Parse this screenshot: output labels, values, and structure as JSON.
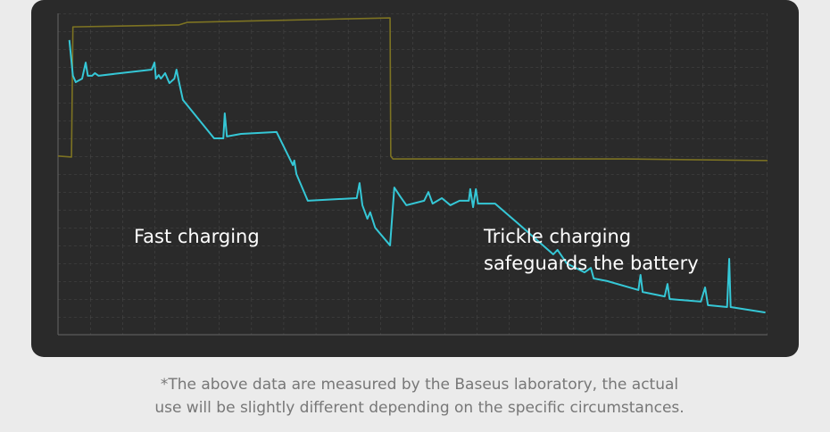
{
  "chart_data": {
    "type": "line",
    "xlim": [
      0,
      100
    ],
    "ylim": [
      0,
      100
    ],
    "grid": true,
    "series": [
      {
        "color": "#7d7322",
        "x": [
          0,
          1.9,
          2.1,
          17,
          18.2,
          46.8,
          46.9,
          47.2,
          79.9,
          100
        ],
        "values": [
          55.6,
          55.3,
          95.8,
          96.4,
          97.2,
          98.6,
          55.6,
          54.7,
          54.7,
          54.2
        ]
      },
      {
        "color": "#35c7d6",
        "x": [
          1.6,
          2.1,
          2.5,
          3.4,
          3.9,
          4.2,
          4.8,
          5.2,
          5.7,
          13.2,
          13.6,
          13.8,
          14.2,
          14.5,
          15.1,
          15.7,
          16.4,
          16.7,
          17.0,
          17.6,
          22.0,
          23.3,
          23.5,
          23.8,
          25.8,
          30.8,
          33.1,
          33.3,
          33.6,
          35.2,
          42.1,
          42.5,
          42.9,
          43.6,
          44.0,
          44.7,
          46.8,
          47.4,
          48.2,
          49.1,
          51.6,
          52.2,
          52.8,
          54.1,
          55.3,
          56.6,
          57.9,
          58.1,
          58.5,
          58.9,
          59.2,
          61.6,
          64.8,
          69.8,
          70.4,
          71.7,
          74.2,
          75.1,
          75.5,
          77.4,
          81.8,
          82.1,
          82.4,
          85.5,
          85.9,
          86.2,
          90.6,
          91.2,
          91.6,
          94.3,
          94.6,
          94.8,
          99.7
        ],
        "values": [
          91.7,
          80.6,
          78.6,
          79.7,
          84.7,
          80.6,
          80.6,
          81.4,
          80.6,
          82.5,
          84.7,
          79.7,
          80.8,
          79.7,
          81.4,
          78.3,
          79.7,
          82.5,
          79.2,
          73.1,
          61.1,
          61.1,
          68.9,
          61.7,
          62.5,
          63.1,
          52.8,
          54.2,
          50.0,
          41.7,
          42.5,
          47.2,
          40.3,
          36.1,
          38.1,
          33.3,
          27.8,
          45.8,
          43.1,
          40.3,
          41.7,
          44.4,
          40.8,
          42.5,
          40.3,
          41.7,
          41.7,
          45.3,
          39.7,
          45.3,
          40.8,
          40.8,
          34.7,
          25.0,
          26.4,
          22.2,
          19.4,
          20.8,
          17.5,
          16.7,
          13.9,
          18.6,
          13.3,
          11.9,
          15.8,
          11.1,
          10.3,
          14.7,
          9.2,
          8.6,
          23.6,
          8.6,
          6.9
        ]
      }
    ],
    "annotations": [
      "Fast charging",
      "Trickle charging",
      "safeguards the battery"
    ],
    "caption": [
      "*The above data are measured by the Baseus laboratory, the actual",
      "use will be slightly different depending on the specific circumstances."
    ]
  }
}
